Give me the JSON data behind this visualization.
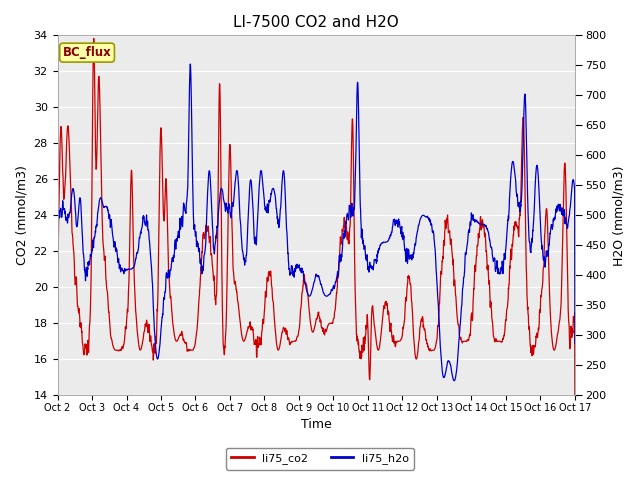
{
  "title": "LI-7500 CO2 and H2O",
  "xlabel": "Time",
  "ylabel_left": "CO2 (mmol/m3)",
  "ylabel_right": "H2O (mmol/m3)",
  "ylim_left": [
    14,
    34
  ],
  "ylim_right": [
    200,
    800
  ],
  "yticks_left": [
    14,
    16,
    18,
    20,
    22,
    24,
    26,
    28,
    30,
    32,
    34
  ],
  "yticks_right": [
    200,
    250,
    300,
    350,
    400,
    450,
    500,
    550,
    600,
    650,
    700,
    750,
    800
  ],
  "xtick_labels": [
    "Oct 2",
    "Oct 3",
    "Oct 4",
    "Oct 5",
    "Oct 6",
    "Oct 7",
    "Oct 8",
    "Oct 9",
    "Oct 10",
    "Oct 11",
    "Oct 12",
    "Oct 13",
    "Oct 14",
    "Oct 15",
    "Oct 16",
    "Oct 17"
  ],
  "color_co2": "#cc0000",
  "color_h2o": "#0000cc",
  "annotation_text": "BC_flux",
  "annotation_facecolor": "#ffffaa",
  "annotation_edgecolor": "#999900",
  "plot_bg": "#ebebeb",
  "legend_co2": "li75_co2",
  "legend_h2o": "li75_h2o",
  "title_fontsize": 11,
  "axis_fontsize": 9,
  "tick_fontsize": 8,
  "linewidth": 0.9
}
